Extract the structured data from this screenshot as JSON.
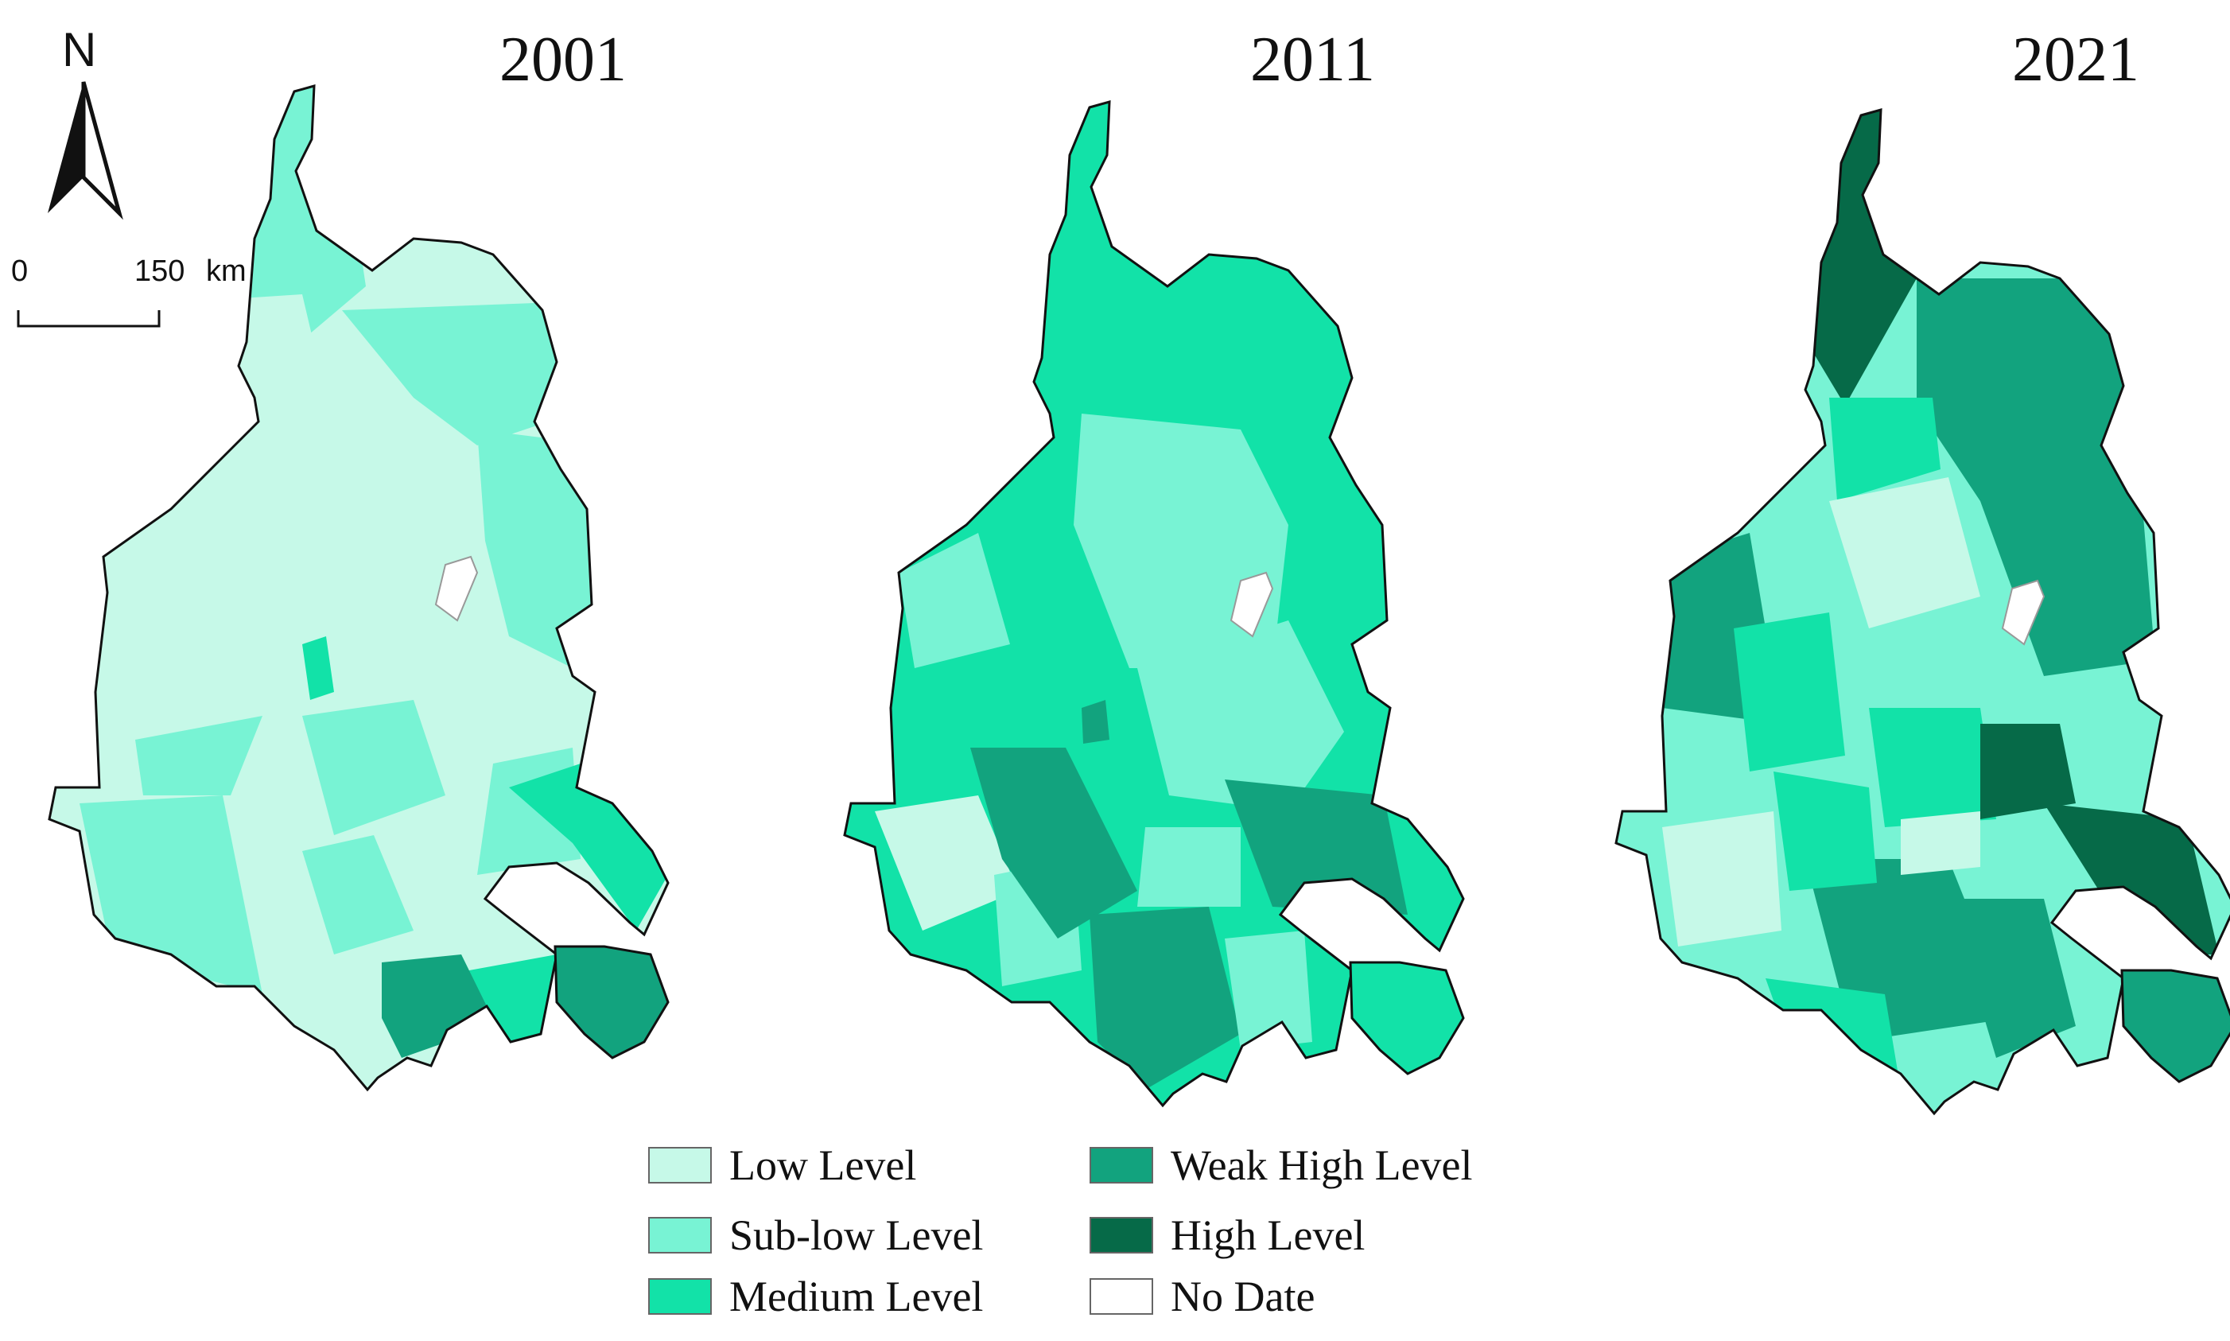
{
  "years": [
    "2001",
    "2011",
    "2021"
  ],
  "compass": {
    "label": "N",
    "icon": "north-arrow-icon"
  },
  "scale_bar": {
    "start": "0",
    "end": "150",
    "unit": "km"
  },
  "legend": [
    {
      "key": "low",
      "label": "Low Level",
      "color": "#c6f9e8"
    },
    {
      "key": "sublow",
      "label": "Sub-low Level",
      "color": "#78f3d4"
    },
    {
      "key": "medium",
      "label": "Medium Level",
      "color": "#12e2a8"
    },
    {
      "key": "weakhigh",
      "label": "Weak High Level",
      "color": "#12a37e"
    },
    {
      "key": "high",
      "label": "High Level",
      "color": "#066a48"
    },
    {
      "key": "nodata",
      "label": "No Date",
      "color": "#ffffff"
    }
  ]
}
